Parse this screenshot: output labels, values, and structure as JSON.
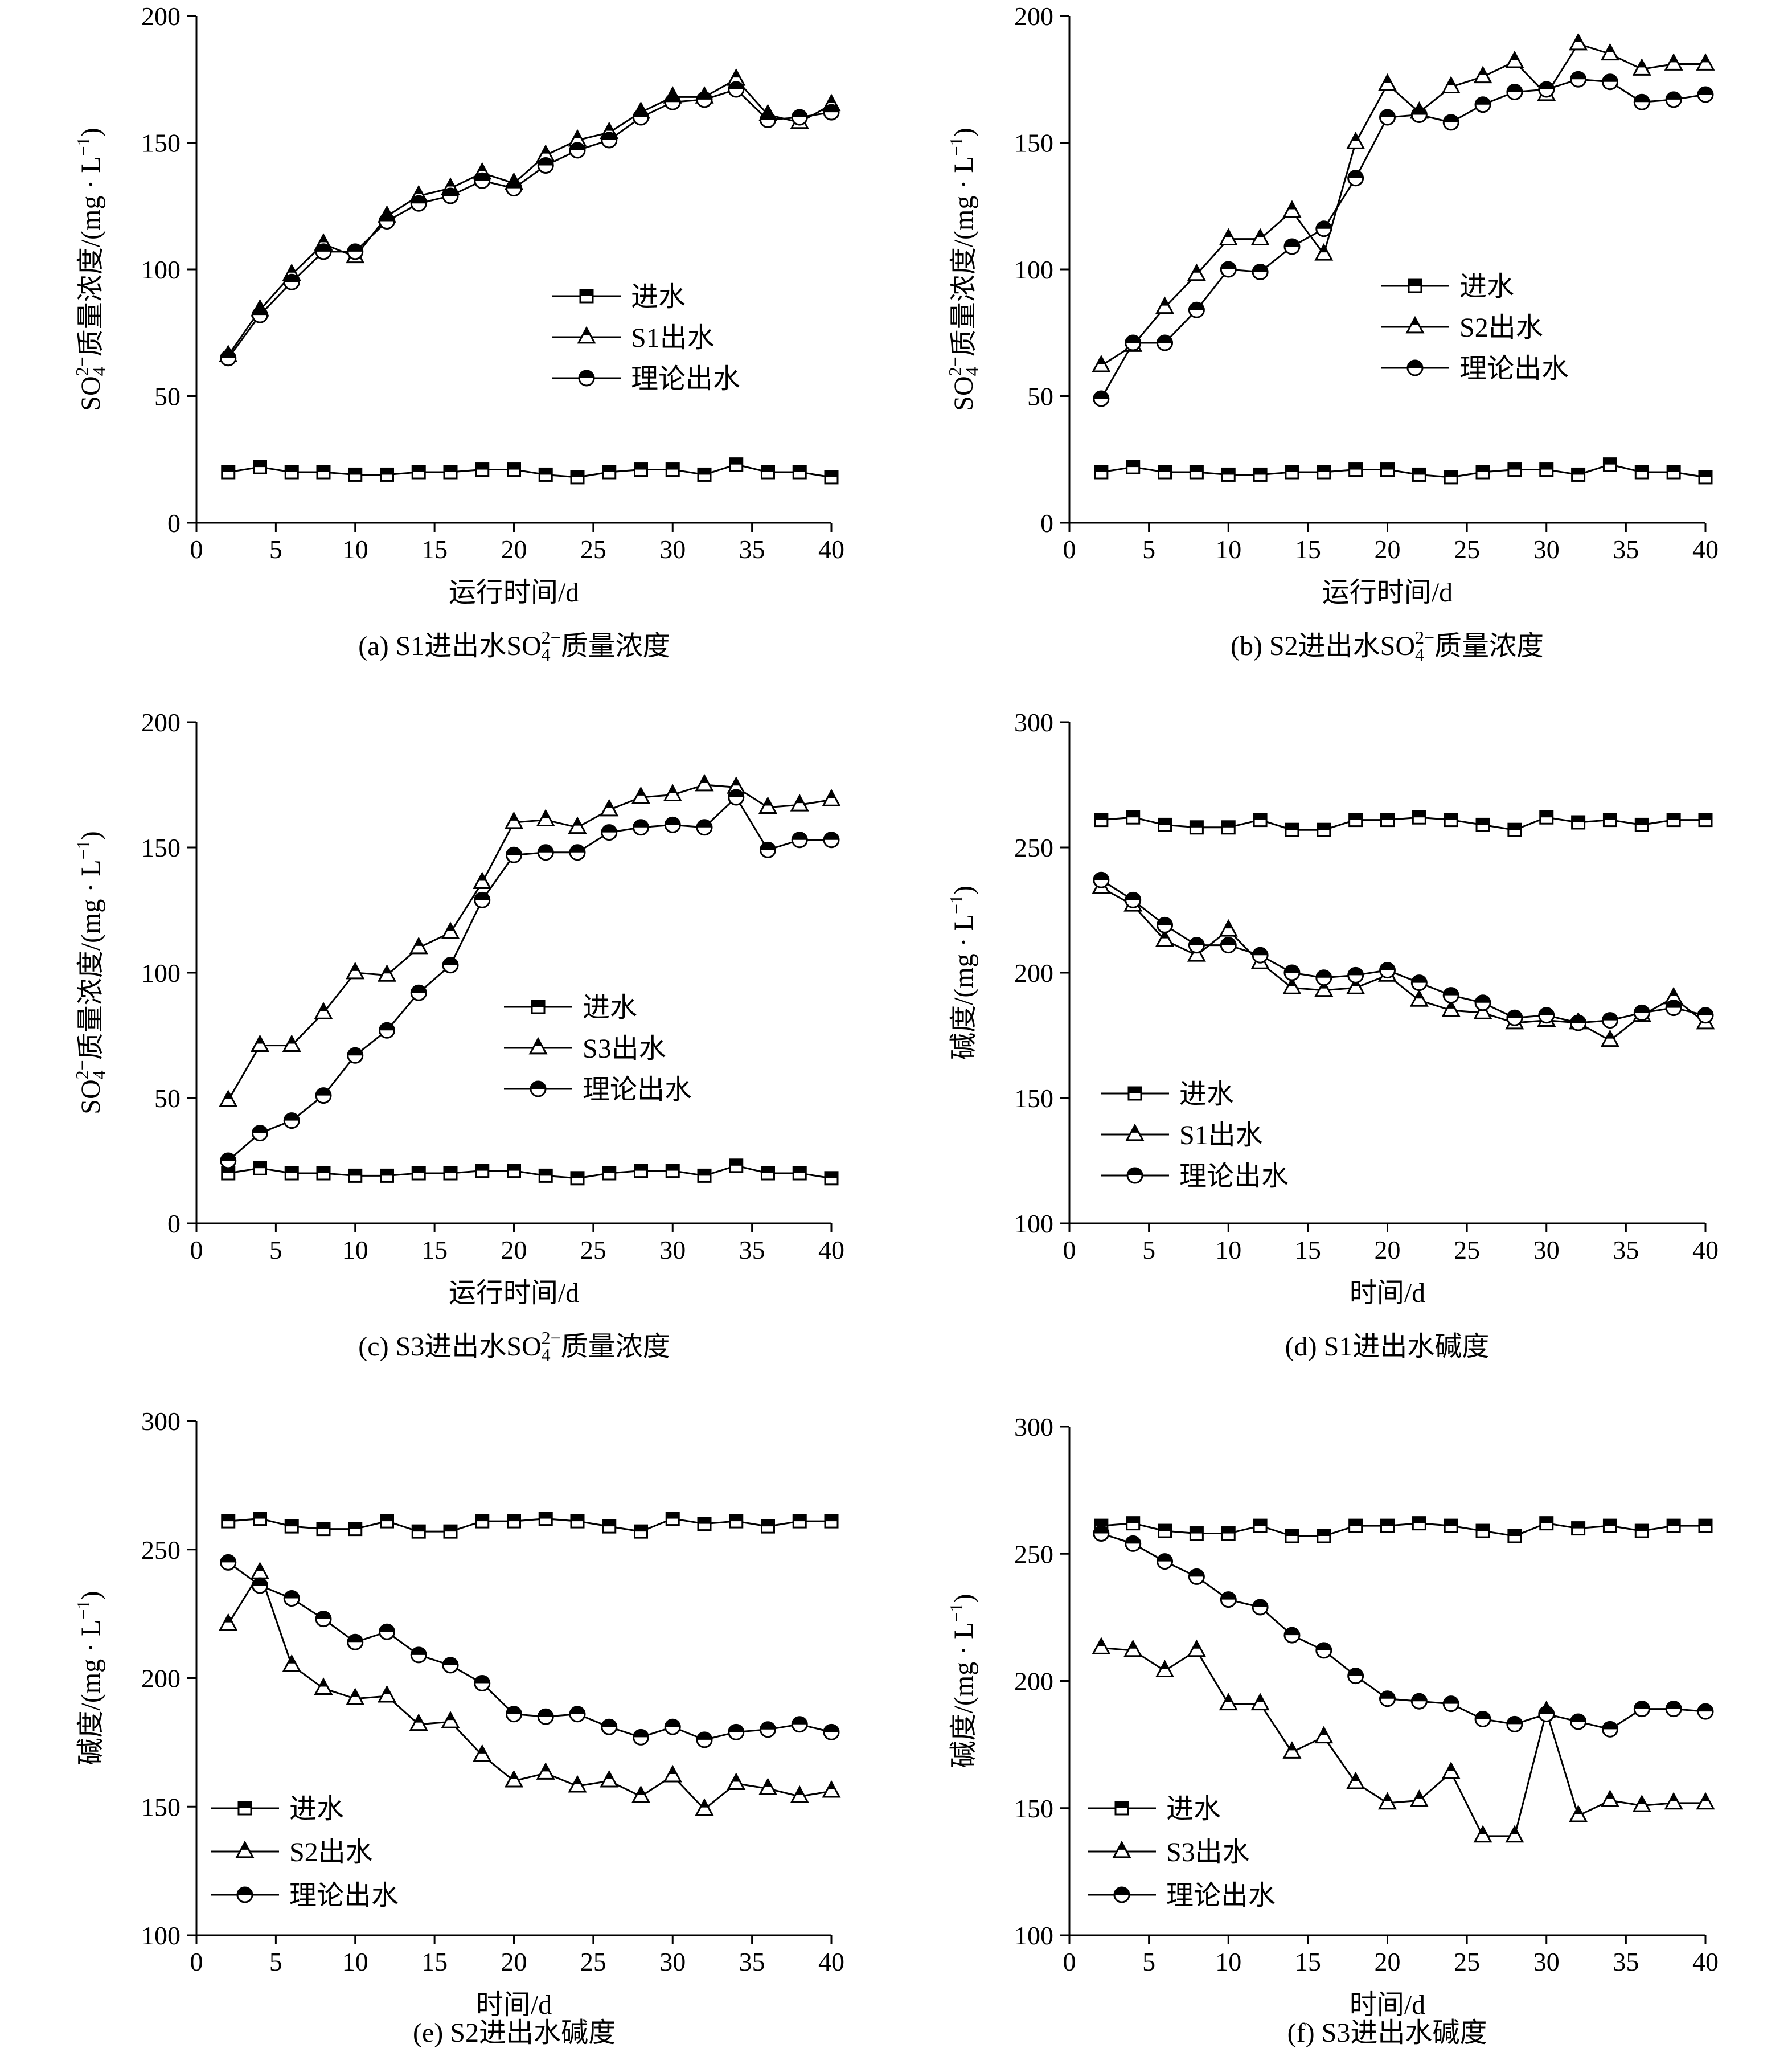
{
  "chart_data": [
    {
      "type": "line",
      "caption": "(a) S1进出水SO42−质量浓度",
      "caption_parts": {
        "pre": "(a) S1进出水SO",
        "sub": "4",
        "sup": "2−",
        "post": "质量浓度"
      },
      "xlabel": "运行时间/d",
      "ylabel": "SO42−质量浓度/(mg · L−1)",
      "ylabel_parts": {
        "pre": "SO",
        "sub": "4",
        "sup": "2−",
        "mid": "质量浓度/(mg · L",
        "sup2": "−1",
        "post": ")"
      },
      "xlim": [
        0,
        40
      ],
      "ylim": [
        0,
        200
      ],
      "xticks": [
        0,
        5,
        10,
        15,
        20,
        25,
        30,
        35,
        40
      ],
      "yticks": [
        0,
        50,
        100,
        150,
        200
      ],
      "legend_position": "center",
      "x": [
        2,
        4,
        6,
        8,
        10,
        12,
        14,
        16,
        18,
        20,
        22,
        24,
        26,
        28,
        30,
        32,
        34,
        36,
        38,
        40
      ],
      "series": [
        {
          "name": "进水",
          "marker": "square",
          "values": [
            20,
            22,
            20,
            20,
            19,
            19,
            20,
            20,
            21,
            21,
            19,
            18,
            20,
            21,
            21,
            19,
            23,
            20,
            20,
            18
          ]
        },
        {
          "name": "S1出水",
          "marker": "triangle",
          "values": [
            66,
            84,
            98,
            110,
            105,
            121,
            129,
            132,
            138,
            134,
            145,
            151,
            154,
            162,
            168,
            168,
            175,
            161,
            158,
            165
          ]
        },
        {
          "name": "理论出水",
          "marker": "circle",
          "values": [
            65,
            82,
            95,
            107,
            107,
            119,
            126,
            129,
            135,
            132,
            141,
            147,
            151,
            160,
            166,
            167,
            171,
            159,
            160,
            162
          ]
        }
      ]
    },
    {
      "type": "line",
      "caption": "(b) S2进出水SO42−质量浓度",
      "caption_parts": {
        "pre": "(b) S2进出水SO",
        "sub": "4",
        "sup": "2−",
        "post": "质量浓度"
      },
      "xlabel": "运行时间/d",
      "ylabel": "SO42−质量浓度/(mg · L−1)",
      "ylabel_parts": {
        "pre": "SO",
        "sub": "4",
        "sup": "2−",
        "mid": "质量浓度/(mg · L",
        "sup2": "−1",
        "post": ")"
      },
      "xlim": [
        0,
        40
      ],
      "ylim": [
        0,
        200
      ],
      "xticks": [
        0,
        5,
        10,
        15,
        20,
        25,
        30,
        35,
        40
      ],
      "yticks": [
        0,
        50,
        100,
        150,
        200
      ],
      "legend_position": "center-right",
      "x": [
        2,
        4,
        6,
        8,
        10,
        12,
        14,
        16,
        18,
        20,
        22,
        24,
        26,
        28,
        30,
        32,
        34,
        36,
        38,
        40
      ],
      "series": [
        {
          "name": "进水",
          "marker": "square",
          "values": [
            20,
            22,
            20,
            20,
            19,
            19,
            20,
            20,
            21,
            21,
            19,
            18,
            20,
            21,
            21,
            19,
            23,
            20,
            20,
            18
          ]
        },
        {
          "name": "S2出水",
          "marker": "triangle",
          "values": [
            62,
            70,
            85,
            98,
            112,
            112,
            123,
            106,
            150,
            173,
            162,
            172,
            176,
            182,
            169,
            189,
            185,
            179,
            181,
            181
          ]
        },
        {
          "name": "理论出水",
          "marker": "circle",
          "values": [
            49,
            71,
            71,
            84,
            100,
            99,
            109,
            116,
            136,
            160,
            161,
            158,
            165,
            170,
            171,
            175,
            174,
            166,
            167,
            169
          ]
        }
      ]
    },
    {
      "type": "line",
      "caption": "(c) S3进出水SO42−质量浓度",
      "caption_parts": {
        "pre": "(c) S3进出水SO",
        "sub": "4",
        "sup": "2−",
        "post": "质量浓度"
      },
      "xlabel": "运行时间/d",
      "ylabel": "SO42−质量浓度/(mg · L−1)",
      "ylabel_parts": {
        "pre": "SO",
        "sub": "4",
        "sup": "2−",
        "mid": "质量浓度/(mg · L",
        "sup2": "−1",
        "post": ")"
      },
      "xlim": [
        0,
        40
      ],
      "ylim": [
        0,
        200
      ],
      "xticks": [
        0,
        5,
        10,
        15,
        20,
        25,
        30,
        35,
        40
      ],
      "yticks": [
        0,
        50,
        100,
        150,
        200
      ],
      "legend_position": "center-right",
      "x": [
        2,
        4,
        6,
        8,
        10,
        12,
        14,
        16,
        18,
        20,
        22,
        24,
        26,
        28,
        30,
        32,
        34,
        36,
        38,
        40
      ],
      "series": [
        {
          "name": "进水",
          "marker": "square",
          "values": [
            20,
            22,
            20,
            20,
            19,
            19,
            20,
            20,
            21,
            21,
            19,
            18,
            20,
            21,
            21,
            19,
            23,
            20,
            20,
            18
          ]
        },
        {
          "name": "S3出水",
          "marker": "triangle",
          "values": [
            49,
            71,
            71,
            84,
            100,
            99,
            110,
            116,
            136,
            160,
            161,
            158,
            165,
            170,
            171,
            175,
            174,
            166,
            167,
            169
          ]
        },
        {
          "name": "理论出水",
          "marker": "circle",
          "values": [
            25,
            36,
            41,
            51,
            67,
            77,
            92,
            103,
            129,
            147,
            148,
            148,
            156,
            158,
            159,
            158,
            170,
            149,
            153,
            153
          ]
        }
      ]
    },
    {
      "type": "line",
      "caption": "(d) S1进出水碱度",
      "caption_parts": {
        "pre": "(d) S1进出水碱度",
        "sub": "",
        "sup": "",
        "post": ""
      },
      "xlabel": "时间/d",
      "ylabel": "碱度/(mg · L−1)",
      "ylabel_parts": {
        "pre": "",
        "sub": "",
        "sup": "",
        "mid": "碱度/(mg · L",
        "sup2": "−1",
        "post": ")"
      },
      "xlim": [
        0,
        40
      ],
      "ylim": [
        100,
        300
      ],
      "xticks": [
        0,
        5,
        10,
        15,
        20,
        25,
        30,
        35,
        40
      ],
      "yticks": [
        100,
        150,
        200,
        250,
        300
      ],
      "legend_position": "bottom-left",
      "x": [
        2,
        4,
        6,
        8,
        10,
        12,
        14,
        16,
        18,
        20,
        22,
        24,
        26,
        28,
        30,
        32,
        34,
        36,
        38,
        40
      ],
      "series": [
        {
          "name": "进水",
          "marker": "square",
          "values": [
            261,
            262,
            259,
            258,
            258,
            261,
            257,
            257,
            261,
            261,
            262,
            261,
            259,
            257,
            262,
            260,
            261,
            259,
            261,
            261
          ]
        },
        {
          "name": "S1出水",
          "marker": "triangle",
          "values": [
            234,
            227,
            213,
            207,
            217,
            204,
            194,
            193,
            194,
            199,
            189,
            185,
            184,
            180,
            181,
            180,
            173,
            183,
            190,
            180
          ]
        },
        {
          "name": "理论出水",
          "marker": "circle",
          "values": [
            237,
            229,
            219,
            211,
            211,
            207,
            200,
            198,
            199,
            201,
            196,
            191,
            188,
            182,
            183,
            180,
            181,
            184,
            186,
            183
          ]
        }
      ]
    },
    {
      "type": "line",
      "caption": "(e) S2进出水碱度",
      "caption_parts": {
        "pre": "(e) S2进出水碱度",
        "sub": "",
        "sup": "",
        "post": ""
      },
      "xlabel": "时间/d",
      "ylabel": "碱度/(mg · L−1)",
      "ylabel_parts": {
        "pre": "",
        "sub": "",
        "sup": "",
        "mid": "碱度/(mg · L",
        "sup2": "−1",
        "post": ")"
      },
      "xlim": [
        0,
        40
      ],
      "ylim": [
        100,
        300
      ],
      "xticks": [
        0,
        5,
        10,
        15,
        20,
        25,
        30,
        35,
        40
      ],
      "yticks": [
        100,
        150,
        200,
        250,
        300
      ],
      "legend_position": "bottom-left",
      "x": [
        2,
        4,
        6,
        8,
        10,
        12,
        14,
        16,
        18,
        20,
        22,
        24,
        26,
        28,
        30,
        32,
        34,
        36,
        38,
        40
      ],
      "series": [
        {
          "name": "进水",
          "marker": "square",
          "values": [
            261,
            262,
            259,
            258,
            258,
            261,
            257,
            257,
            261,
            261,
            262,
            261,
            259,
            257,
            262,
            260,
            261,
            259,
            261,
            261
          ]
        },
        {
          "name": "S2出水",
          "marker": "triangle",
          "values": [
            221,
            241,
            205,
            196,
            192,
            193,
            182,
            183,
            170,
            160,
            163,
            158,
            160,
            154,
            162,
            149,
            159,
            157,
            154,
            156
          ]
        },
        {
          "name": "理论出水",
          "marker": "circle",
          "values": [
            245,
            236,
            231,
            223,
            214,
            218,
            209,
            205,
            198,
            186,
            185,
            186,
            181,
            177,
            181,
            176,
            179,
            180,
            182,
            179
          ]
        }
      ]
    },
    {
      "type": "line",
      "caption": "(f) S3进出水碱度",
      "caption_parts": {
        "pre": "(f) S3进出水碱度",
        "sub": "",
        "sup": "",
        "post": ""
      },
      "xlabel": "时间/d",
      "ylabel": "碱度/(mg · L−1)",
      "ylabel_parts": {
        "pre": "",
        "sub": "",
        "sup": "",
        "mid": "碱度/(mg · L",
        "sup2": "−1",
        "post": ")"
      },
      "xlim": [
        0,
        40
      ],
      "ylim": [
        100,
        300
      ],
      "xticks": [
        0,
        5,
        10,
        15,
        20,
        25,
        30,
        35,
        40
      ],
      "yticks": [
        100,
        150,
        200,
        250,
        300
      ],
      "legend_position": "bottom-left",
      "x": [
        2,
        4,
        6,
        8,
        10,
        12,
        14,
        16,
        18,
        20,
        22,
        24,
        26,
        28,
        30,
        32,
        34,
        36,
        38,
        40
      ],
      "series": [
        {
          "name": "进水",
          "marker": "square",
          "values": [
            261,
            262,
            259,
            258,
            258,
            261,
            257,
            257,
            261,
            261,
            262,
            261,
            259,
            257,
            262,
            260,
            261,
            259,
            261,
            261
          ]
        },
        {
          "name": "S3出水",
          "marker": "triangle",
          "values": [
            213,
            212,
            204,
            212,
            191,
            191,
            172,
            178,
            160,
            152,
            153,
            164,
            139,
            139,
            188,
            147,
            153,
            151,
            152,
            152
          ]
        },
        {
          "name": "理论出水",
          "marker": "circle",
          "values": [
            258,
            254,
            247,
            241,
            232,
            229,
            218,
            212,
            202,
            193,
            192,
            191,
            185,
            183,
            187,
            184,
            181,
            189,
            189,
            188
          ]
        }
      ]
    }
  ]
}
